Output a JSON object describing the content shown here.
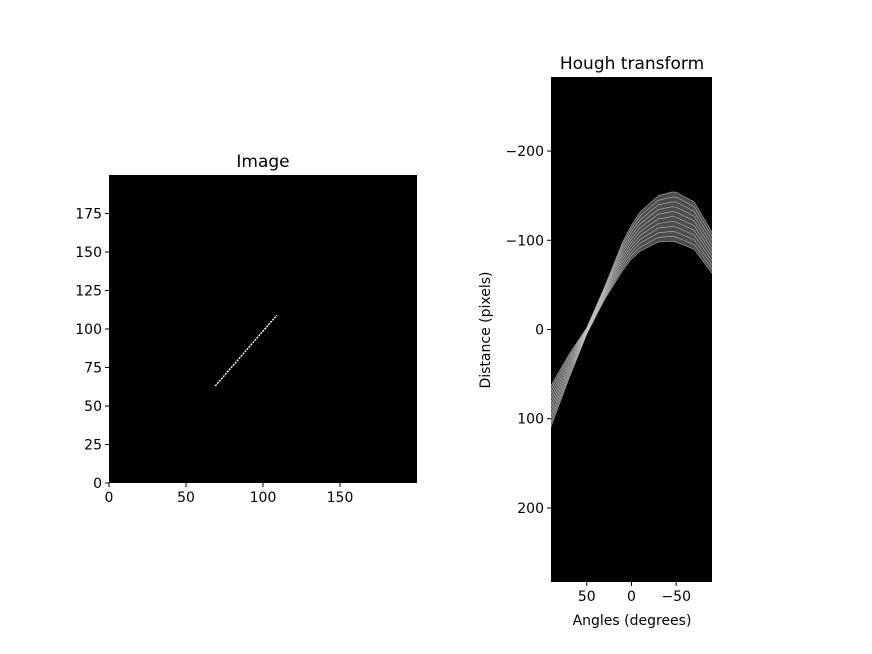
{
  "colors": {
    "background": "#ffffff",
    "plot_background": "#000000",
    "line": "#ffffff",
    "hough_band": "#8a8a8a",
    "hough_band_edge": "#d0d0d0"
  },
  "chart_data": [
    {
      "type": "heatmap",
      "title": "Image",
      "xlabel": "",
      "ylabel": "",
      "xlim": [
        0,
        200
      ],
      "ylim": [
        0,
        200
      ],
      "xticks": [
        0,
        50,
        100,
        150
      ],
      "yticks": [
        0,
        25,
        50,
        75,
        100,
        125,
        150,
        175
      ],
      "colormap": "gray",
      "grid": false,
      "line_segment": {
        "start": [
          69,
          63
        ],
        "end": [
          109,
          109
        ]
      }
    },
    {
      "type": "heatmap",
      "title": "Hough transform",
      "xlabel": "Angles (degrees)",
      "ylabel": "Distance (pixels)",
      "xlim": [
        90,
        -90
      ],
      "ylim": [
        283,
        -283
      ],
      "xticks": [
        50,
        0,
        -50
      ],
      "yticks": [
        -200,
        -100,
        0,
        100,
        200
      ],
      "colormap": "gray",
      "grid": false,
      "band": {
        "inner_curve": {
          "angles_deg": [
            90,
            70,
            50,
            30,
            10,
            0,
            -10,
            -30,
            -45,
            -50,
            -70,
            -90
          ],
          "distance": [
            109,
            55,
            5,
            -34,
            -66,
            -79,
            -88,
            -98,
            -99,
            -98,
            -90,
            -63
          ]
        },
        "outer_curve": {
          "angles_deg": [
            90,
            70,
            50,
            30,
            10,
            0,
            -10,
            -30,
            -45,
            -50,
            -70,
            -90
          ],
          "distance": [
            63,
            28,
            -2,
            -48,
            -98,
            -117,
            -132,
            -150,
            -154,
            -154,
            -143,
            -109
          ]
        }
      }
    }
  ]
}
